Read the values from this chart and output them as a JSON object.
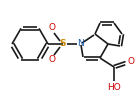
{
  "bg_color": "#ffffff",
  "bond_color": "#1a1a1a",
  "bond_width": 1.2,
  "figsize": [
    1.4,
    1.01
  ],
  "dpi": 100,
  "xlim": [
    0,
    140
  ],
  "ylim": [
    0,
    101
  ]
}
